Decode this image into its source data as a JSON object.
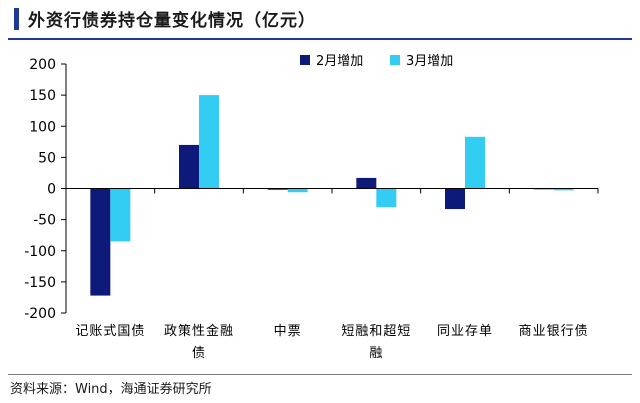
{
  "header": {
    "title": "外资行债券持仓量变化情况（亿元）"
  },
  "footer": {
    "source": "资料来源：Wind，海通证券研究所"
  },
  "colors": {
    "series_feb": "#0d1a7a",
    "series_mar": "#33ccf2",
    "accent": "#1f3a93"
  },
  "chart_data": {
    "type": "bar",
    "title": "外资行债券持仓量变化情况（亿元）",
    "xlabel": "",
    "ylabel": "",
    "ylim": [
      -200,
      200
    ],
    "yticks": [
      200,
      150,
      100,
      50,
      0,
      -50,
      -100,
      -150,
      -200
    ],
    "grid": false,
    "legend": "top-right",
    "categories": [
      [
        "记账式国债"
      ],
      [
        "政策性金融",
        "债"
      ],
      [
        "中票"
      ],
      [
        "短融和超短",
        "融"
      ],
      [
        "同业存单"
      ],
      [
        "商业银行债"
      ]
    ],
    "series": [
      {
        "name": "2月增加",
        "values": [
          -172,
          70,
          -2,
          17,
          -33,
          0
        ]
      },
      {
        "name": "3月增加",
        "values": [
          -85,
          150,
          -6,
          -30,
          83,
          -3
        ]
      }
    ]
  }
}
